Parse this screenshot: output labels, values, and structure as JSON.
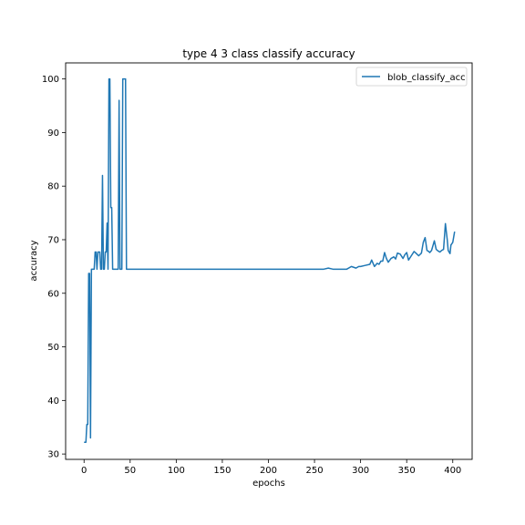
{
  "chart_data": {
    "type": "line",
    "title": "type 4 3 class classify accuracy",
    "xlabel": "epochs",
    "ylabel": "accuracy",
    "xlim": [
      -20,
      421
    ],
    "ylim": [
      29,
      103
    ],
    "xticks": [
      0,
      50,
      100,
      150,
      200,
      250,
      300,
      350,
      400
    ],
    "yticks": [
      30,
      40,
      50,
      60,
      70,
      80,
      90,
      100
    ],
    "grid": false,
    "legend_position": "top-right",
    "series": [
      {
        "name": "blob_classify_acc",
        "color": "#1f77b4",
        "x": [
          0,
          2,
          3,
          4,
          5,
          6,
          7,
          8,
          9,
          10,
          11,
          12,
          13,
          14,
          15,
          16,
          17,
          18,
          19,
          20,
          21,
          22,
          23,
          24,
          25,
          26,
          27,
          28,
          29,
          30,
          31,
          32,
          33,
          34,
          35,
          36,
          37,
          38,
          39,
          40,
          41,
          42,
          43,
          44,
          45,
          46,
          47,
          48,
          49,
          50,
          51,
          52,
          53,
          54,
          55,
          56,
          57,
          58,
          59,
          60,
          62,
          100,
          150,
          200,
          250,
          260,
          265,
          270,
          285,
          290,
          295,
          298,
          300,
          305,
          310,
          312,
          315,
          318,
          320,
          322,
          324,
          326,
          328,
          330,
          333,
          336,
          338,
          340,
          343,
          346,
          348,
          350,
          352,
          355,
          358,
          360,
          363,
          366,
          368,
          370,
          372,
          374,
          375,
          377,
          380,
          382,
          384,
          386,
          388,
          390,
          392,
          394,
          395,
          397,
          398,
          400,
          402
        ],
        "values": [
          32.2,
          32.2,
          35.5,
          35.5,
          63.7,
          63.7,
          33.0,
          64.5,
          64.5,
          64.5,
          64.5,
          67.7,
          67.7,
          64.5,
          67.7,
          67.7,
          67.7,
          64.5,
          64.5,
          82.0,
          64.5,
          64.5,
          67.7,
          67.7,
          73.1,
          64.5,
          100.0,
          100.0,
          76.0,
          76.0,
          64.5,
          64.5,
          64.5,
          64.5,
          64.5,
          64.5,
          64.5,
          96.0,
          64.5,
          64.5,
          64.5,
          100.0,
          100.0,
          100.0,
          100.0,
          64.5,
          64.5,
          64.5,
          64.5,
          64.5,
          64.5,
          64.5,
          64.5,
          64.5,
          64.5,
          64.5,
          64.5,
          64.5,
          64.5,
          64.5,
          64.5,
          64.5,
          64.5,
          64.5,
          64.5,
          64.5,
          64.7,
          64.5,
          64.5,
          65.0,
          64.7,
          65.0,
          65.0,
          65.2,
          65.4,
          66.2,
          65.0,
          65.6,
          65.4,
          66.0,
          66.0,
          67.6,
          66.5,
          65.8,
          66.5,
          66.8,
          66.4,
          67.5,
          67.3,
          66.5,
          67.2,
          67.6,
          66.2,
          67.0,
          67.8,
          67.5,
          67.0,
          67.5,
          69.5,
          70.4,
          68.0,
          67.8,
          67.6,
          68.0,
          69.8,
          68.2,
          67.9,
          67.7,
          68.0,
          68.2,
          73.0,
          70.0,
          68.0,
          67.4,
          69.0,
          69.5,
          71.5
        ]
      }
    ]
  }
}
